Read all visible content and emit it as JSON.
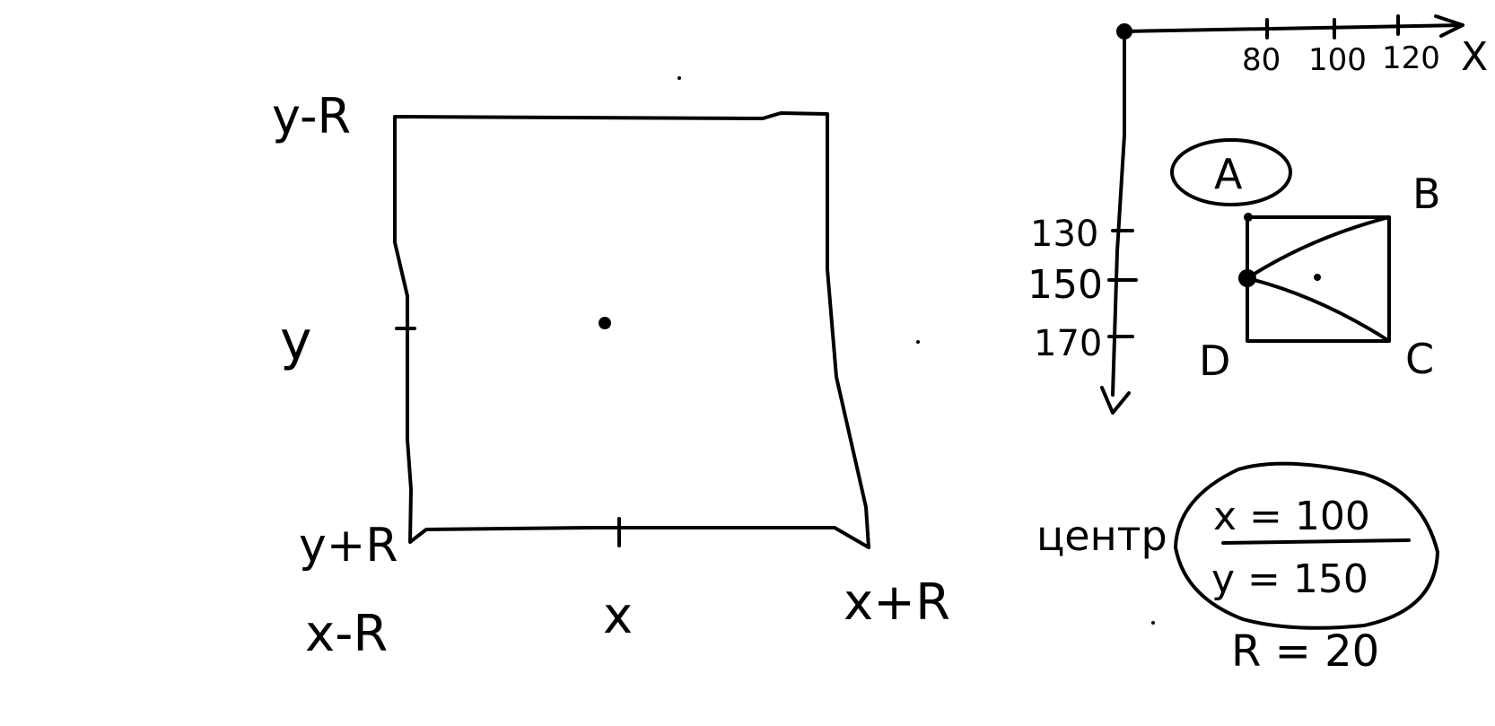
{
  "colors": {
    "ink": "#000000",
    "background": "#ffffff"
  },
  "left_diagram": {
    "label_top_left": "y-R",
    "label_y": "y",
    "label_bottom_left": "y+R",
    "label_x_left": "x-R",
    "label_x": "x",
    "label_x_right": "x+R"
  },
  "axes": {
    "x_axis_label": "X",
    "x_ticks": [
      "80",
      "100",
      "120"
    ],
    "y_ticks": [
      "130",
      "150",
      "170"
    ]
  },
  "points": {
    "a": "A",
    "b": "B",
    "c": "C",
    "d": "D"
  },
  "center_note": {
    "label": "центр",
    "x_eq": "x = 100",
    "y_eq": "y = 150",
    "r_eq": "R = 20"
  }
}
